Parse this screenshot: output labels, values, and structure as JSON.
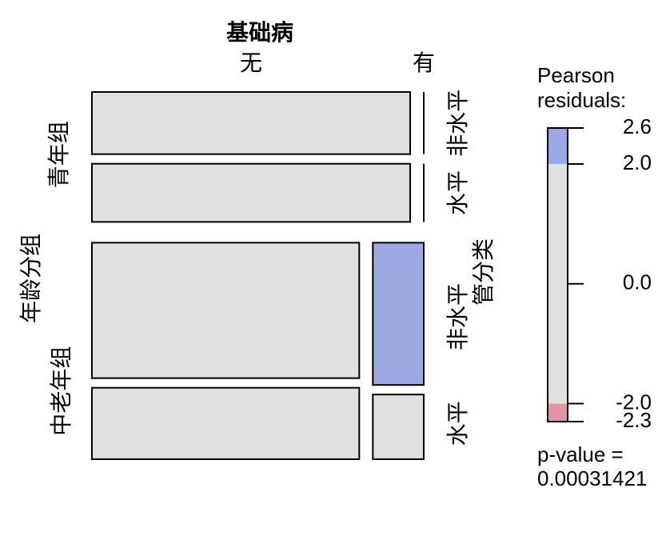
{
  "chart_data": {
    "type": "mosaic",
    "column_variable": "基础病",
    "columns": [
      "无",
      "有"
    ],
    "row_variable": "年龄分组",
    "rows": [
      "青年组",
      "中老年组"
    ],
    "sub_variable": "管分类",
    "sub_levels": [
      "非水平",
      "水平"
    ],
    "counts": [
      [
        [
          31,
          29
        ],
        [
          0,
          0
        ]
      ],
      [
        [
          55,
          29
        ],
        [
          11,
          5
        ]
      ]
    ],
    "fills": [
      [
        [
          "#e0e0e0",
          "#e0e0e0"
        ],
        [
          "#e0e0e0",
          "#e0e0e0"
        ]
      ],
      [
        [
          "#e0e0e0",
          "#e0e0e0"
        ],
        [
          "#9da8e2",
          "#e0e0e0"
        ]
      ]
    ],
    "legend": {
      "title_lines": [
        "Pearson",
        "residuals:"
      ],
      "ylim": [
        -2.3,
        2.6
      ],
      "ticks": [
        {
          "value": 2.6,
          "label": "2.6"
        },
        {
          "value": 2,
          "label": "2.0"
        },
        {
          "value": 0,
          "label": "0.0"
        },
        {
          "value": -2,
          "label": "-2.0"
        },
        {
          "value": -2.3,
          "label": "-2.3"
        }
      ],
      "bands": [
        {
          "from": -2.3,
          "to": -2,
          "color": "#e495a5"
        },
        {
          "from": -2,
          "to": 2,
          "color": "#e0e0e0"
        },
        {
          "from": 2,
          "to": 2.6,
          "color": "#9da8e2"
        }
      ]
    },
    "p_value_label": "p-value =",
    "p_value": 0.00031421
  }
}
